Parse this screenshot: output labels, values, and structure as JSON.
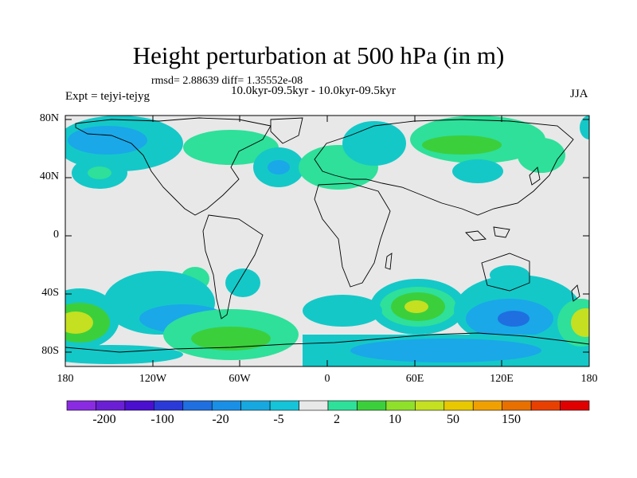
{
  "title": "Height perturbation at 500 hPa (in m)",
  "stats": "rmsd= 2.88639 diff= 1.35552e-08",
  "period": "10.0kyr-09.5kyr - 10.0kyr-09.5kyr",
  "experiment": "Expt = tejyi-tejyg",
  "season": "JJA",
  "lat_ticks": [
    "80N",
    "40N",
    "0",
    "40S",
    "80S"
  ],
  "lon_ticks": [
    "180",
    "120W",
    "60W",
    "0",
    "60E",
    "120E",
    "180"
  ],
  "colorbar": {
    "labels": [
      "-200",
      "-100",
      "-20",
      "-5",
      "2",
      "10",
      "50",
      "150"
    ],
    "colors": [
      "#8a2be2",
      "#6a1fd4",
      "#4b0fd0",
      "#2a3ad8",
      "#1f6fe0",
      "#1a8fe6",
      "#17a8e0",
      "#15c4d8",
      "#e8e8e8",
      "#2ee09a",
      "#3ccf3c",
      "#8fe02a",
      "#c4e020",
      "#e8c800",
      "#f0a000",
      "#e87000",
      "#e84000",
      "#e00000"
    ]
  },
  "colors": {
    "land_bg": "#e8e8e8",
    "teal": "#14c8c8",
    "light_blue": "#1aa8e8",
    "blue": "#1f6fe0",
    "sea_green": "#2ee09a",
    "green": "#3ccf3c",
    "yellow_green": "#c4e020"
  }
}
